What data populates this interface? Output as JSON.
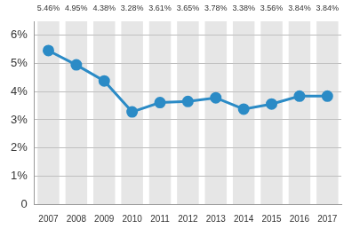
{
  "chart_data": {
    "type": "line",
    "categories": [
      "2007",
      "2008",
      "2009",
      "2010",
      "2011",
      "2012",
      "2013",
      "2014",
      "2015",
      "2016",
      "2017"
    ],
    "values": [
      5.46,
      4.95,
      4.38,
      3.28,
      3.61,
      3.65,
      3.78,
      3.38,
      3.56,
      3.84,
      3.84
    ],
    "value_labels": [
      "5.46%",
      "4.95%",
      "4.38%",
      "3.28%",
      "3.61%",
      "3.65%",
      "3.78%",
      "3.38%",
      "3.56%",
      "3.84%",
      "3.84%"
    ],
    "color": "#2b8bc6",
    "marker": "circle",
    "ylim": [
      0,
      6.5
    ],
    "yticks": [
      0,
      {
        "value": 1,
        "label": "1%"
      },
      {
        "value": 2,
        "label": "2%"
      },
      {
        "value": 3,
        "label": "3%"
      },
      {
        "value": 4,
        "label": "4%"
      },
      {
        "value": 5,
        "label": "5%"
      },
      {
        "value": 6,
        "label": "6%"
      }
    ],
    "grid": true,
    "data_labels": true
  }
}
